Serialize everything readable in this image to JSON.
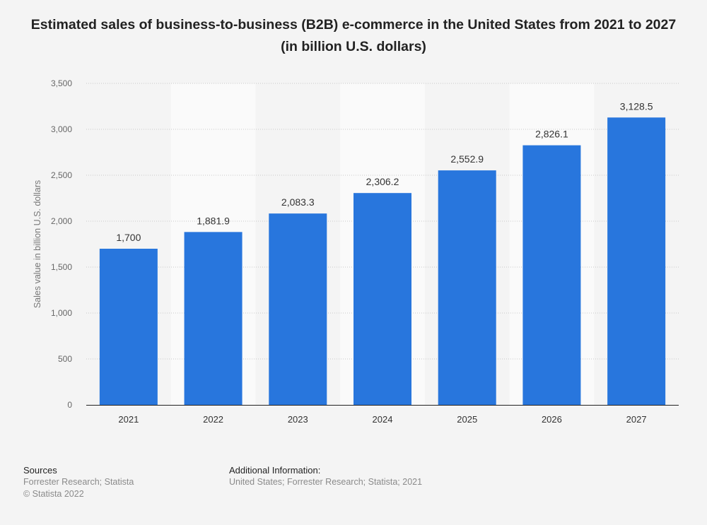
{
  "chart_data": {
    "type": "bar",
    "title": "Estimated sales of business-to-business (B2B) e-commerce in the United States from 2021 to 2027 (in billion U.S. dollars)",
    "xlabel": "",
    "ylabel": "Sales value in billion U.S. dollars",
    "categories": [
      "2021",
      "2022",
      "2023",
      "2024",
      "2025",
      "2026",
      "2027"
    ],
    "values": [
      1700,
      1881.9,
      2083.3,
      2306.2,
      2552.9,
      2826.1,
      3128.5
    ],
    "value_labels": [
      "1,700",
      "1,881.9",
      "2,083.3",
      "2,306.2",
      "2,552.9",
      "2,826.1",
      "3,128.5"
    ],
    "ylim": [
      0,
      3500
    ],
    "yticks": [
      0,
      500,
      1000,
      1500,
      2000,
      2500,
      3000,
      3500
    ],
    "ytick_labels": [
      "0",
      "500",
      "1,000",
      "1,500",
      "2,000",
      "2,500",
      "3,000",
      "3,500"
    ],
    "grid": true,
    "legend": "none",
    "bar_color": "#2876dd"
  },
  "footer": {
    "sources_heading": "Sources",
    "sources_text": "Forrester Research; Statista",
    "copyright": "© Statista 2022",
    "additional_heading": "Additional Information:",
    "additional_text": "United States; Forrester Research; Statista; 2021"
  }
}
